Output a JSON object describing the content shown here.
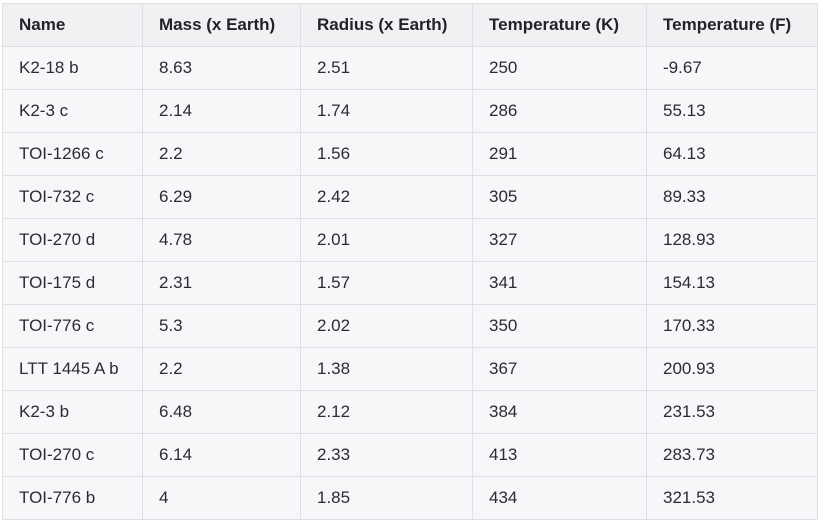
{
  "table": {
    "headers": [
      "Name",
      "Mass (x Earth)",
      "Radius (x Earth)",
      "Temperature (K)",
      "Temperature (F)"
    ],
    "rows": [
      [
        "K2-18 b",
        "8.63",
        "2.51",
        "250",
        "-9.67"
      ],
      [
        "K2-3 c",
        "2.14",
        "1.74",
        "286",
        "55.13"
      ],
      [
        "TOI-1266 c",
        "2.2",
        "1.56",
        "291",
        "64.13"
      ],
      [
        "TOI-732 c",
        "6.29",
        "2.42",
        "305",
        "89.33"
      ],
      [
        "TOI-270 d",
        "4.78",
        "2.01",
        "327",
        "128.93"
      ],
      [
        "TOI-175 d",
        "2.31",
        "1.57",
        "341",
        "154.13"
      ],
      [
        "TOI-776 c",
        "5.3",
        "2.02",
        "350",
        "170.33"
      ],
      [
        "LTT 1445 A b",
        "2.2",
        "1.38",
        "367",
        "200.93"
      ],
      [
        "K2-3 b",
        "6.48",
        "2.12",
        "384",
        "231.53"
      ],
      [
        "TOI-270 c",
        "6.14",
        "2.33",
        "413",
        "283.73"
      ],
      [
        "TOI-776 b",
        "4",
        "1.85",
        "434",
        "321.53"
      ]
    ]
  }
}
